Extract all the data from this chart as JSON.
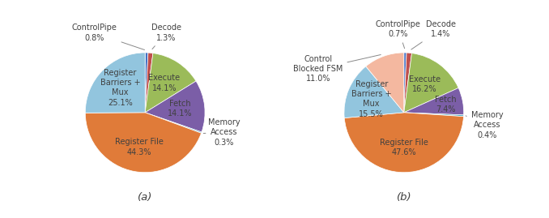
{
  "chart_a": {
    "labels": [
      "ControlPipe",
      "Decode",
      "Execute",
      "Fetch",
      "Memory\nAccess",
      "Register File",
      "Register\nBarriers +\nMux"
    ],
    "values": [
      0.8,
      1.3,
      14.1,
      14.1,
      0.3,
      44.3,
      25.1
    ],
    "colors": [
      "#4472c4",
      "#c0504d",
      "#9bbb59",
      "#7b5ea7",
      "#4bacc6",
      "#e07b39",
      "#92c5de"
    ],
    "label": "(a)"
  },
  "chart_b": {
    "labels": [
      "ControlPipe",
      "Decode",
      "Execute",
      "Fetch",
      "Memory\nAccess",
      "Register File",
      "Register\nBarriers +\nMux",
      "Control\nBlocked FSM"
    ],
    "values": [
      0.7,
      1.4,
      16.2,
      7.4,
      0.4,
      47.6,
      15.5,
      11.0
    ],
    "colors": [
      "#4472c4",
      "#c0504d",
      "#9bbb59",
      "#7b5ea7",
      "#4bacc6",
      "#e07b39",
      "#92c5de",
      "#f4b8a0"
    ],
    "label": "(b)"
  },
  "font_color": "#404040",
  "font_size": 7.0,
  "subtitle_fontsize": 9.5
}
